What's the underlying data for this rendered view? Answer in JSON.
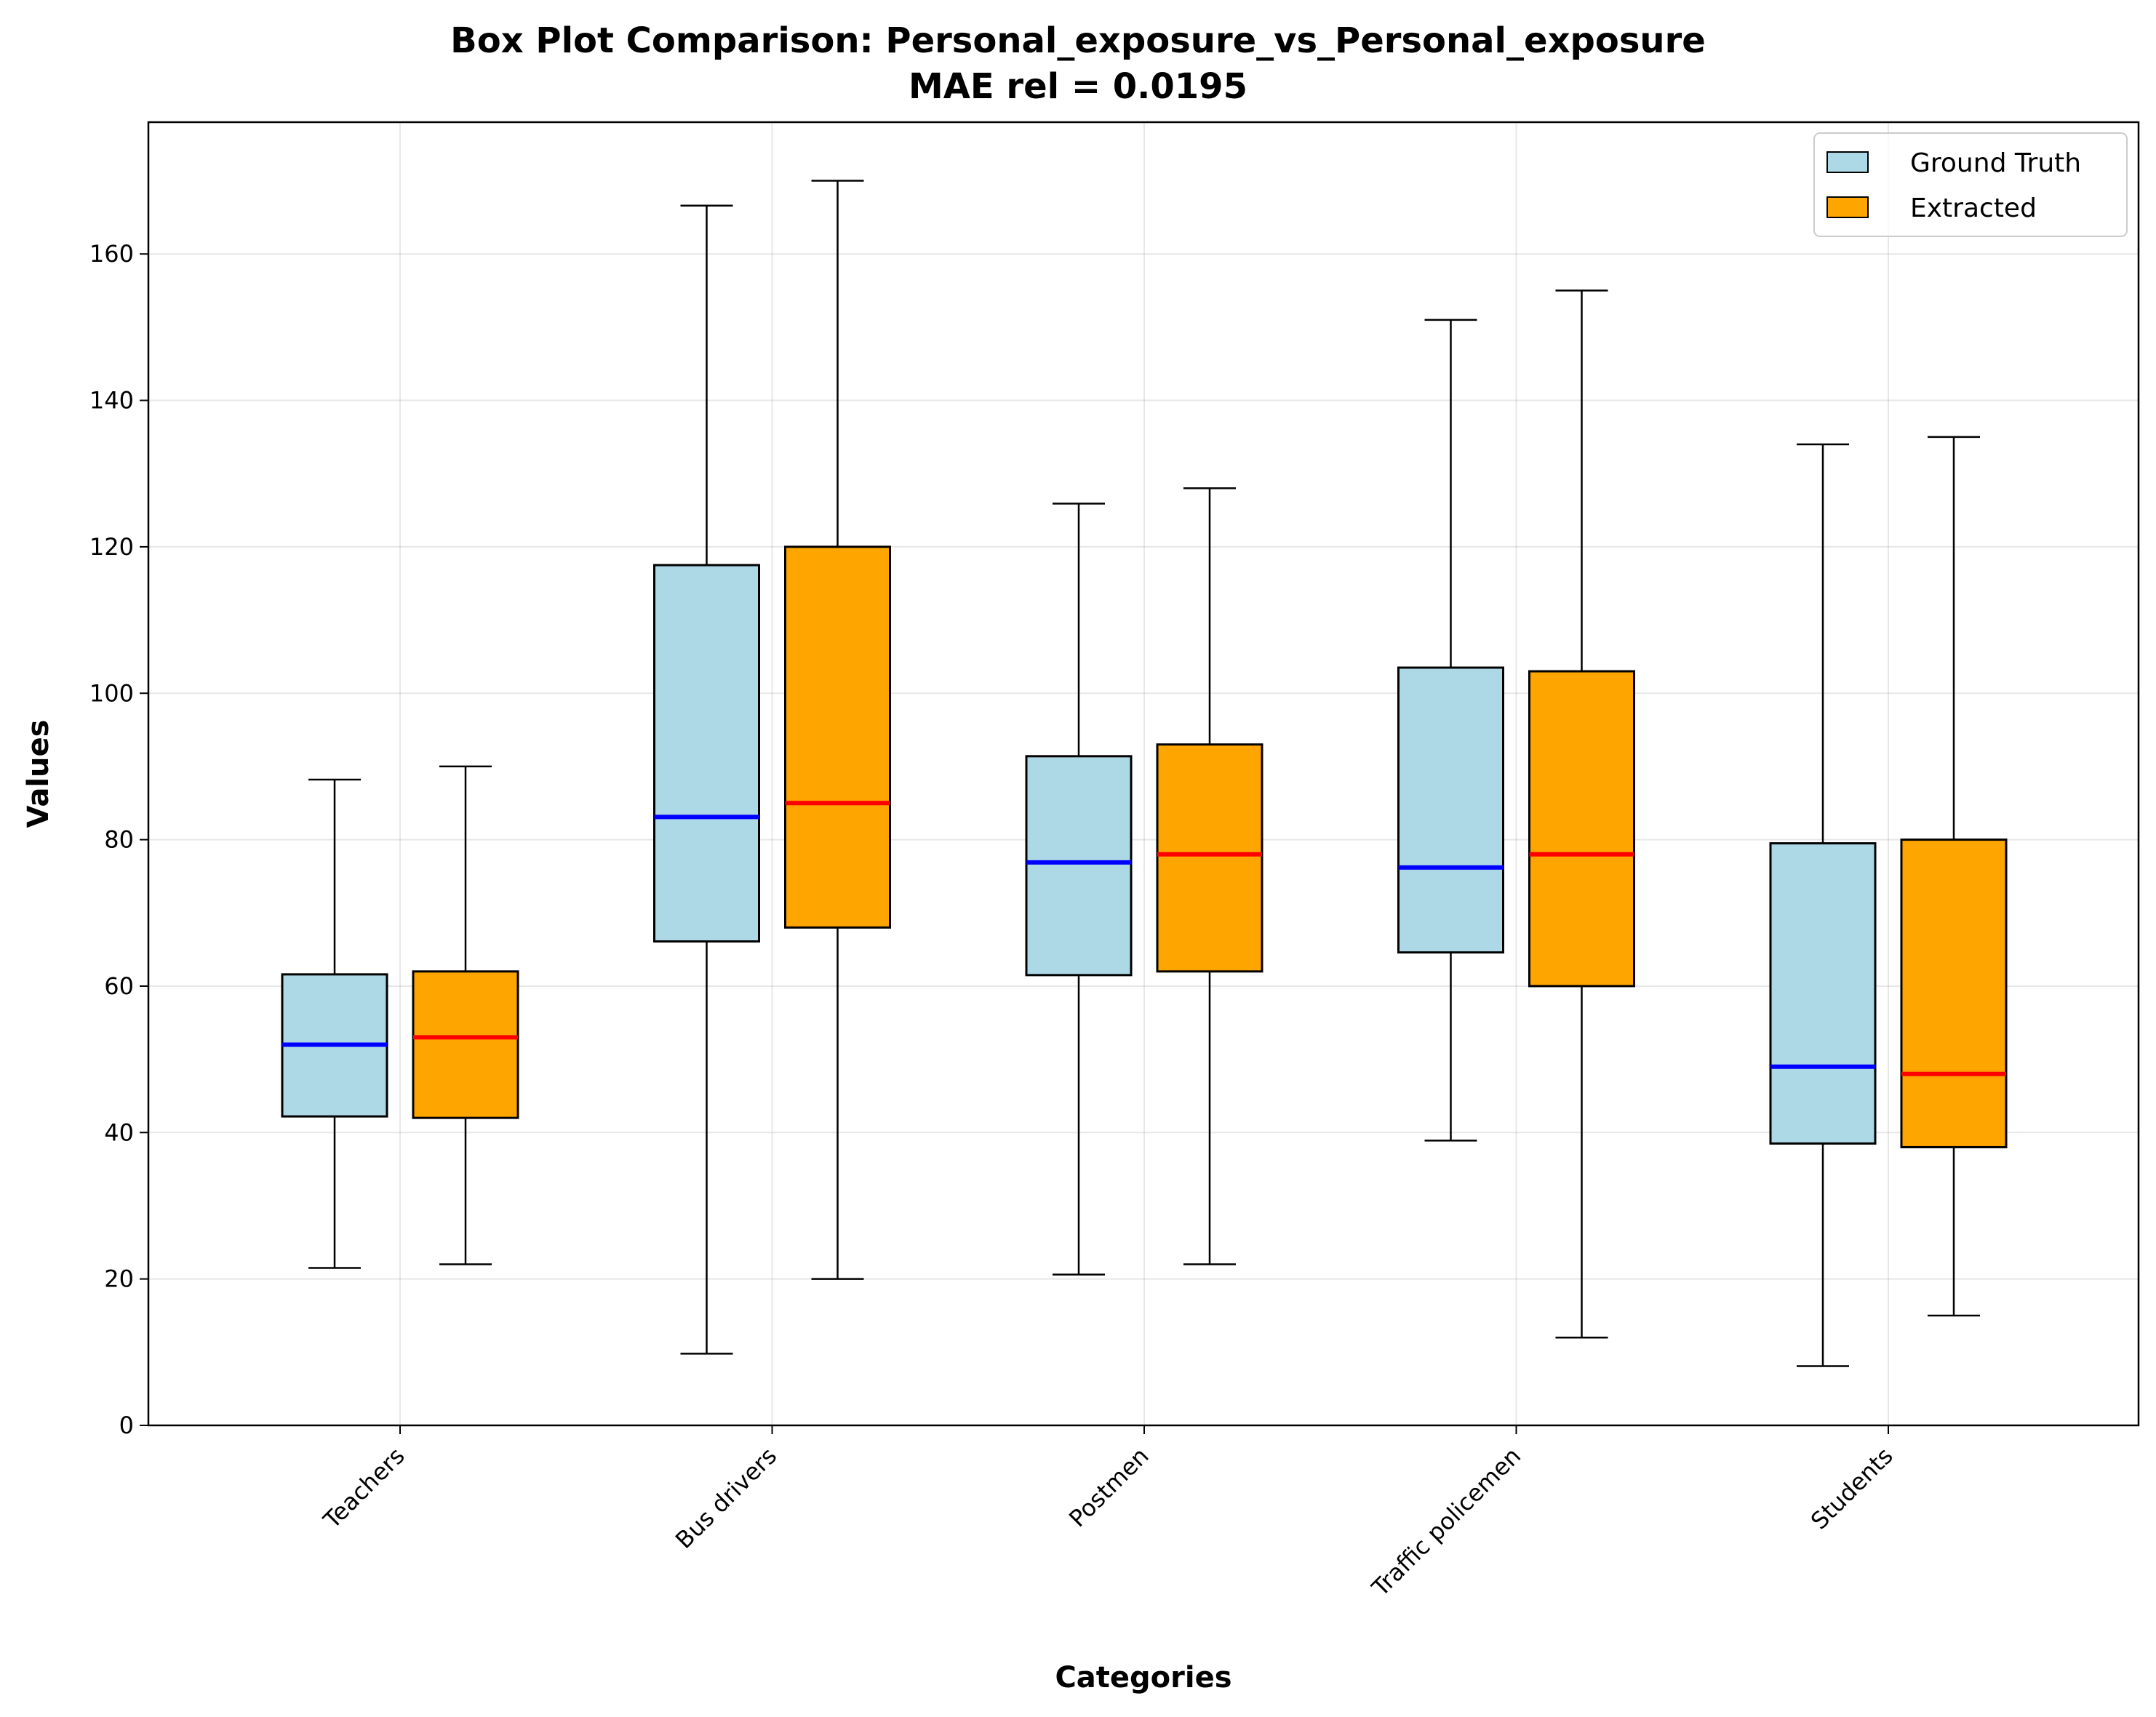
{
  "chart_data": {
    "type": "box",
    "title_line1": "Box Plot Comparison: Personal_exposure_vs_Personal_exposure",
    "title_line2": "MAE rel = 0.0195",
    "xlabel": "Categories",
    "ylabel": "Values",
    "ylim": [
      0,
      178
    ],
    "yticks": [
      0,
      20,
      40,
      60,
      80,
      100,
      120,
      140,
      160
    ],
    "ytick_labels": [
      "0",
      "20",
      "40",
      "60",
      "80",
      "100",
      "120",
      "140",
      "160"
    ],
    "grid": true,
    "legend_position": "top-right",
    "categories": [
      "Teachers",
      "Bus drivers",
      "Postmen",
      "Traffic policemen",
      "Students"
    ],
    "series": [
      {
        "name": "Ground Truth",
        "fill": "#add8e6",
        "median_color": "#0000ff",
        "boxes": [
          {
            "whisker_low": 21.5,
            "q1": 42.2,
            "median": 52.0,
            "q3": 61.6,
            "whisker_high": 88.2
          },
          {
            "whisker_low": 9.8,
            "q1": 66.1,
            "median": 83.1,
            "q3": 117.5,
            "whisker_high": 166.6
          },
          {
            "whisker_low": 20.6,
            "q1": 61.5,
            "median": 76.9,
            "q3": 91.4,
            "whisker_high": 125.9
          },
          {
            "whisker_low": 38.9,
            "q1": 64.6,
            "median": 76.2,
            "q3": 103.5,
            "whisker_high": 151.0
          },
          {
            "whisker_low": 8.1,
            "q1": 38.5,
            "median": 49.0,
            "q3": 79.5,
            "whisker_high": 134.0
          }
        ]
      },
      {
        "name": "Extracted",
        "fill": "#ffa500",
        "median_color": "#ff0000",
        "boxes": [
          {
            "whisker_low": 22.0,
            "q1": 42.0,
            "median": 53.0,
            "q3": 62.0,
            "whisker_high": 90.0
          },
          {
            "whisker_low": 20.0,
            "q1": 68.0,
            "median": 85.0,
            "q3": 120.0,
            "whisker_high": 170.0
          },
          {
            "whisker_low": 22.0,
            "q1": 62.0,
            "median": 78.0,
            "q3": 93.0,
            "whisker_high": 128.0
          },
          {
            "whisker_low": 12.0,
            "q1": 60.0,
            "median": 78.0,
            "q3": 103.0,
            "whisker_high": 155.0
          },
          {
            "whisker_low": 15.0,
            "q1": 38.0,
            "median": 48.0,
            "q3": 80.0,
            "whisker_high": 135.0
          }
        ]
      }
    ]
  }
}
